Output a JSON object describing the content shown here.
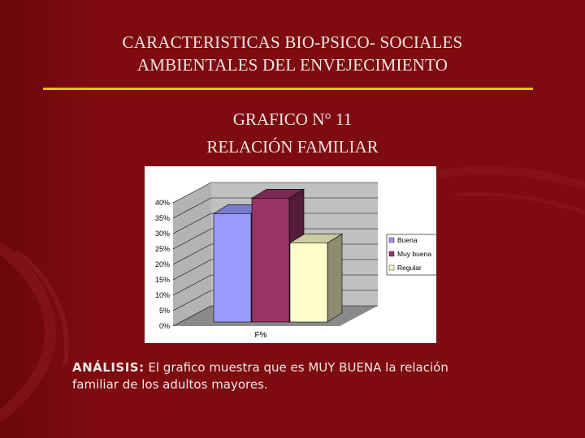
{
  "slide": {
    "title_line1": "CARACTERISTICAS BIO-PSICO- SOCIALES",
    "title_line2": "AMBIENTALES DEL ENVEJECIMIENTO",
    "subtitle_line1": "GRAFICO N° 11",
    "subtitle_line2": "RELACIÓN FAMILIAR",
    "analysis_label": "ANÁLISIS:",
    "analysis_text_line1": "El grafico muestra que es MUY BUENA la relación",
    "analysis_text_line2": "familiar de los adultos mayores.",
    "colors": {
      "background": "#7d0b10",
      "rule": "#e8c21c"
    }
  },
  "chart_data": {
    "type": "bar",
    "categories": [
      "F%"
    ],
    "series": [
      {
        "name": "Buena",
        "values": [
          36.5
        ],
        "color": "#9999ff"
      },
      {
        "name": "Muy buena",
        "values": [
          41.5
        ],
        "color": "#993366"
      },
      {
        "name": "Regular",
        "values": [
          27.0
        ],
        "color": "#ffffcc"
      }
    ],
    "y_ticks": [
      "0%",
      "5%",
      "10%",
      "15%",
      "20%",
      "25%",
      "30%",
      "35%",
      "40%"
    ],
    "ylim": [
      0,
      40
    ],
    "xlabel": "F%",
    "grid": true,
    "legend_position": "right",
    "three_d": true
  }
}
